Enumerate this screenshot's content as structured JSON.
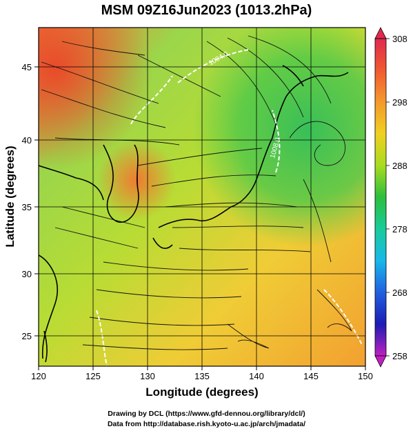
{
  "title": "MSM 09Z16Jun2023 (1013.2hPa)",
  "axes": {
    "xlabel": "Longitude (degrees)",
    "ylabel": "Latitude  (degrees)",
    "x_ticks": [
      "120",
      "125",
      "130",
      "135",
      "140",
      "145",
      "150"
    ],
    "y_ticks": [
      "25",
      "30",
      "35",
      "40",
      "45"
    ]
  },
  "colorbar": {
    "ticks": [
      "308",
      "298",
      "288",
      "278",
      "268",
      "258"
    ],
    "colors": [
      "#e0245a",
      "#f06030",
      "#f49a2c",
      "#f0d020",
      "#b8e020",
      "#2cbf3c",
      "#18cc9a",
      "#18b8e8",
      "#2060e0",
      "#1c1cb4",
      "#c020c0"
    ]
  },
  "contour_labels": [
    "1004.0",
    "1008.0"
  ],
  "footer": {
    "line1": "Drawing by DCL (https://www.gfd-dennou.org/library/dcl/)",
    "line2": "Data from http://database.rish.kyoto-u.ac.jp/arch/jmadata/"
  }
}
